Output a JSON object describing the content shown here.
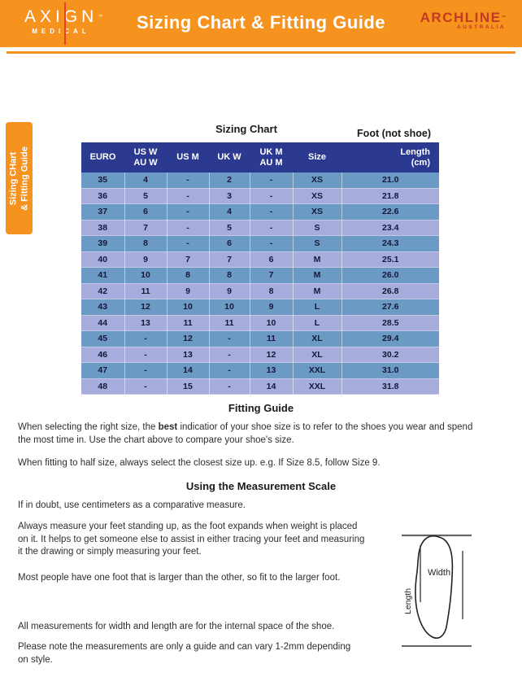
{
  "brand": {
    "axign_name": "AXIGN",
    "axign_tm": "™",
    "axign_sub": "MEDICAL",
    "archline_name": "ARCHLINE",
    "archline_tm": "™",
    "archline_sub": "AUSTRALIA"
  },
  "header": {
    "title": "Sizing Chart & Fitting Guide"
  },
  "side_tab": {
    "line1": "Sizing CHart",
    "line2": "& Fitting Guide"
  },
  "sizing_chart": {
    "title": "Sizing Chart",
    "foot_note": "Foot (not shoe)",
    "columns": [
      {
        "top": "EURO",
        "bottom": ""
      },
      {
        "top": "US W",
        "bottom": "AU W"
      },
      {
        "top": "US M",
        "bottom": ""
      },
      {
        "top": "UK W",
        "bottom": ""
      },
      {
        "top": "UK M",
        "bottom": "AU M"
      },
      {
        "top": "Size",
        "bottom": ""
      },
      {
        "top": "Length",
        "bottom": "(cm)"
      }
    ],
    "rows": [
      [
        "35",
        "4",
        "-",
        "2",
        "-",
        "XS",
        "21.0"
      ],
      [
        "36",
        "5",
        "-",
        "3",
        "-",
        "XS",
        "21.8"
      ],
      [
        "37",
        "6",
        "-",
        "4",
        "-",
        "XS",
        "22.6"
      ],
      [
        "38",
        "7",
        "-",
        "5",
        "-",
        "S",
        "23.4"
      ],
      [
        "39",
        "8",
        "-",
        "6",
        "-",
        "S",
        "24.3"
      ],
      [
        "40",
        "9",
        "7",
        "7",
        "6",
        "M",
        "25.1"
      ],
      [
        "41",
        "10",
        "8",
        "8",
        "7",
        "M",
        "26.0"
      ],
      [
        "42",
        "11",
        "9",
        "9",
        "8",
        "M",
        "26.8"
      ],
      [
        "43",
        "12",
        "10",
        "10",
        "9",
        "L",
        "27.6"
      ],
      [
        "44",
        "13",
        "11",
        "11",
        "10",
        "L",
        "28.5"
      ],
      [
        "45",
        "-",
        "12",
        "-",
        "11",
        "XL",
        "29.4"
      ],
      [
        "46",
        "-",
        "13",
        "-",
        "12",
        "XL",
        "30.2"
      ],
      [
        "47",
        "-",
        "14",
        "-",
        "13",
        "XXL",
        "31.0"
      ],
      [
        "48",
        "-",
        "15",
        "-",
        "14",
        "XXL",
        "31.8"
      ]
    ]
  },
  "fitting_guide": {
    "heading": "Fitting Guide",
    "p1_before": "When selecting the right size, the ",
    "p1_bold": "best",
    "p1_after": " indicatior of your shoe size is to refer to the shoes you wear and spend\nthe most time in. Use the chart above to compare your shoe's size.",
    "p2": "When fitting to half size, always select the closest size up. e.g. If Size 8.5, follow Size 9."
  },
  "measurement": {
    "heading": "Using the Measurement Scale",
    "p1": "If in doubt, use centimeters as a comparative measure.",
    "p2": "Always measure your feet standing up, as the foot expands when weight is placed\non it. It helps to get someone else to assist in either tracing your feet and measuring\nit the drawing or simply measuring your feet.",
    "p3": "Most people have one foot that is larger than the other, so fit to the larger foot.",
    "p4": "All measurements for width and length are for the internal space of the shoe.",
    "p5": "Please note the measurements are only a guide and can vary 1-2mm depending\non style."
  },
  "diagram": {
    "width_label": "Width",
    "length_label": "Length"
  },
  "colors": {
    "orange": "#F6921E",
    "navy": "#2B3990",
    "row_dark": "#6B9AC4",
    "row_light": "#A6ACDB",
    "archline_red": "#C23A26",
    "axign_line_red": "#E8402A"
  }
}
